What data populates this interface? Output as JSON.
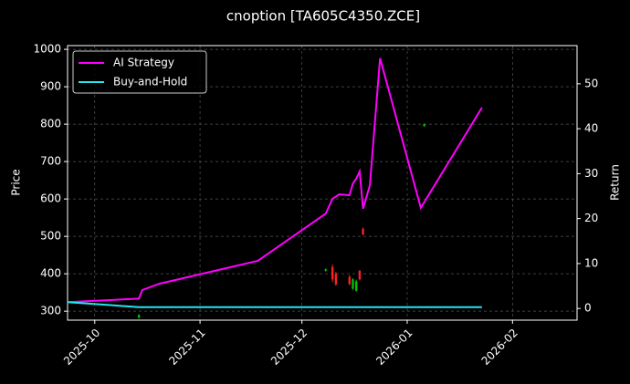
{
  "chart_data": {
    "type": "candlestick",
    "title": "cnoption [TA605C4350.ZCE]",
    "ylabel": "Price",
    "y2label": "Return",
    "x": [
      "2025-10-14",
      "2025-12-08",
      "2025-12-10",
      "2025-12-11",
      "2025-12-15",
      "2025-12-16",
      "2025-12-17",
      "2025-12-18",
      "2025-12-19",
      "2026-01-06"
    ],
    "open": [
      283,
      408,
      418,
      400,
      392,
      360,
      355,
      408,
      520,
      795
    ],
    "high": [
      292,
      414,
      425,
      405,
      396,
      388,
      384,
      410,
      524,
      802
    ],
    "low": [
      280,
      406,
      378,
      368,
      370,
      357,
      352,
      382,
      503,
      793
    ],
    "close": [
      290,
      412,
      385,
      372,
      372,
      385,
      380,
      385,
      505,
      800
    ],
    "up_color": "#00c000",
    "down_color": "#ff2020",
    "series": [
      {
        "name": "AI Strategy",
        "color": "#ff00ff",
        "axis": "y2",
        "x": [
          "2025-09-23",
          "2025-10-14",
          "2025-10-15",
          "2025-10-20",
          "2025-11-18",
          "2025-12-08",
          "2025-12-10",
          "2025-12-12",
          "2025-12-15",
          "2025-12-16",
          "2025-12-17",
          "2025-12-18",
          "2025-12-19",
          "2025-12-21",
          "2025-12-24",
          "2026-01-05",
          "2026-01-23"
        ],
        "values": [
          1.4,
          2.2,
          4.1,
          5.5,
          10.6,
          21.1,
          24.4,
          25.4,
          25.2,
          27.8,
          28.9,
          30.5,
          22.2,
          27.4,
          55.7,
          22.4,
          44.7
        ]
      },
      {
        "name": "Buy-and-Hold",
        "color": "#22e5f0",
        "axis": "y2",
        "x": [
          "2025-09-23",
          "2025-10-14",
          "2026-01-23"
        ],
        "values": [
          1.4,
          0.3,
          0.3
        ]
      }
    ],
    "xlim": [
      "2025-09-23",
      "2026-02-20"
    ],
    "xticks": [
      {
        "value": "2025-10-01",
        "label": "2025-10"
      },
      {
        "value": "2025-11-01",
        "label": "2025-11"
      },
      {
        "value": "2025-12-01",
        "label": "2025-12"
      },
      {
        "value": "2026-01-01",
        "label": "2026-01"
      },
      {
        "value": "2026-02-01",
        "label": "2026-02"
      }
    ],
    "ylim": [
      276,
      1010
    ],
    "yticks": [
      300,
      400,
      500,
      600,
      700,
      800,
      900,
      1000
    ],
    "y2lim": [
      -2.6,
      58.5
    ],
    "y2ticks": [
      0,
      10,
      20,
      30,
      40,
      50
    ],
    "grid": true,
    "legend": "upper left"
  }
}
